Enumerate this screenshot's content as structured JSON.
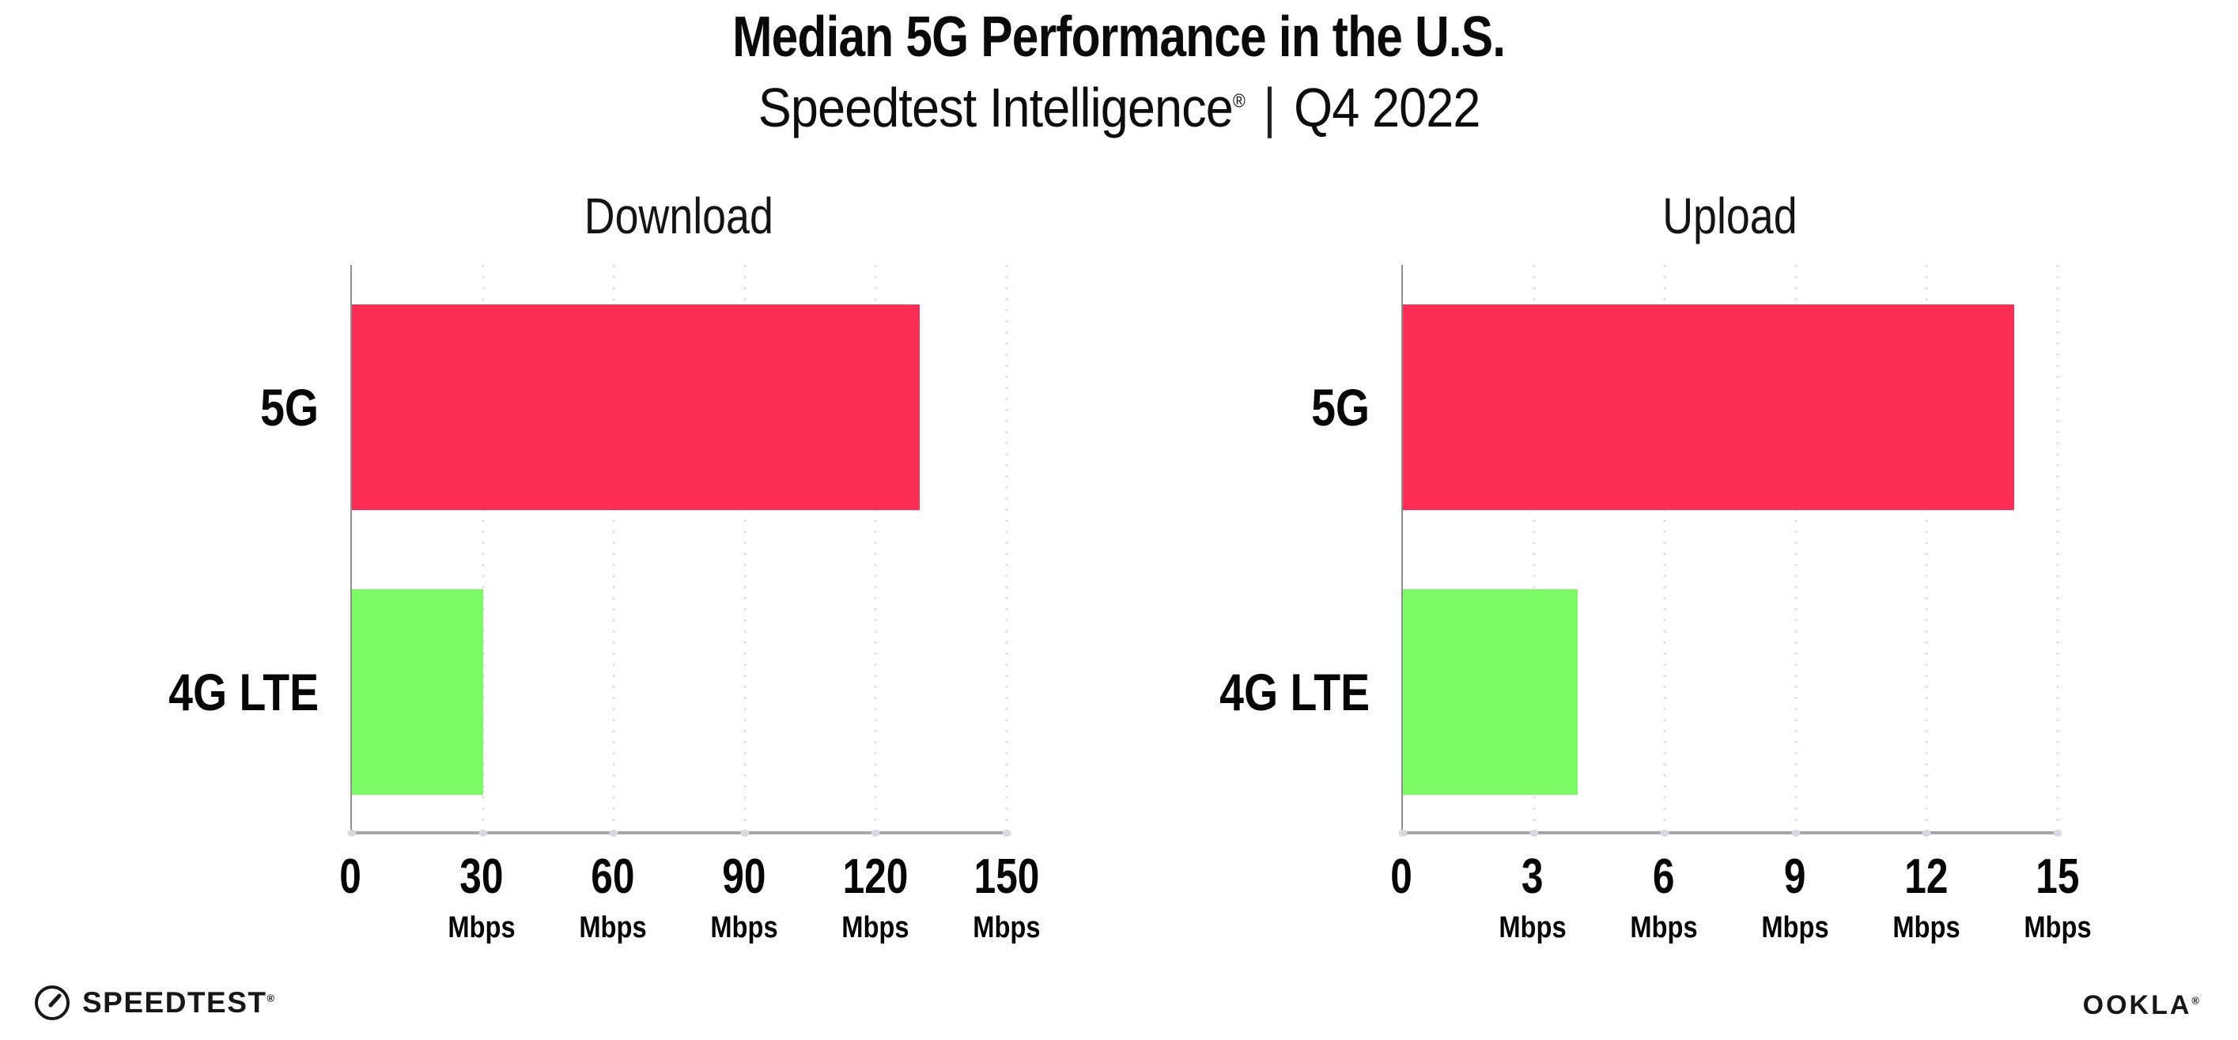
{
  "title": "Median 5G Performance in the U.S.",
  "subtitle": {
    "brand": "Speedtest Intelligence",
    "registered": "®",
    "separator": "|",
    "period": "Q4 2022"
  },
  "footer": {
    "speedtest_label": "SPEEDTEST",
    "speedtest_mark": "®",
    "speedtest_icon": "gauge-icon",
    "ookla_label": "OOKLA",
    "ookla_mark": "®"
  },
  "colors": {
    "bar_5g": "#fd2e56",
    "bar_4g_lte": "#7dfb66",
    "gridline": "#dfe0ea",
    "x_axis": "#a6a6a6",
    "y_axis": "#8e8e8e",
    "text": "#0a0a0a"
  },
  "chart_data": [
    {
      "type": "bar",
      "orientation": "horizontal",
      "title": "Download",
      "categories": [
        "5G",
        "4G LTE"
      ],
      "values": [
        130,
        30
      ],
      "bar_colors": [
        "#fd2e56",
        "#7dfb66"
      ],
      "unit": "Mbps",
      "xlim": [
        0,
        150
      ],
      "xticks": [
        0,
        30,
        60,
        90,
        120,
        150
      ],
      "grid": "dotted-vertical",
      "legend": "none"
    },
    {
      "type": "bar",
      "orientation": "horizontal",
      "title": "Upload",
      "categories": [
        "5G",
        "4G LTE"
      ],
      "values": [
        14,
        4
      ],
      "bar_colors": [
        "#fd2e56",
        "#7dfb66"
      ],
      "unit": "Mbps",
      "xlim": [
        0,
        15
      ],
      "xticks": [
        0,
        3,
        6,
        9,
        12,
        15
      ],
      "grid": "dotted-vertical",
      "legend": "none"
    }
  ]
}
